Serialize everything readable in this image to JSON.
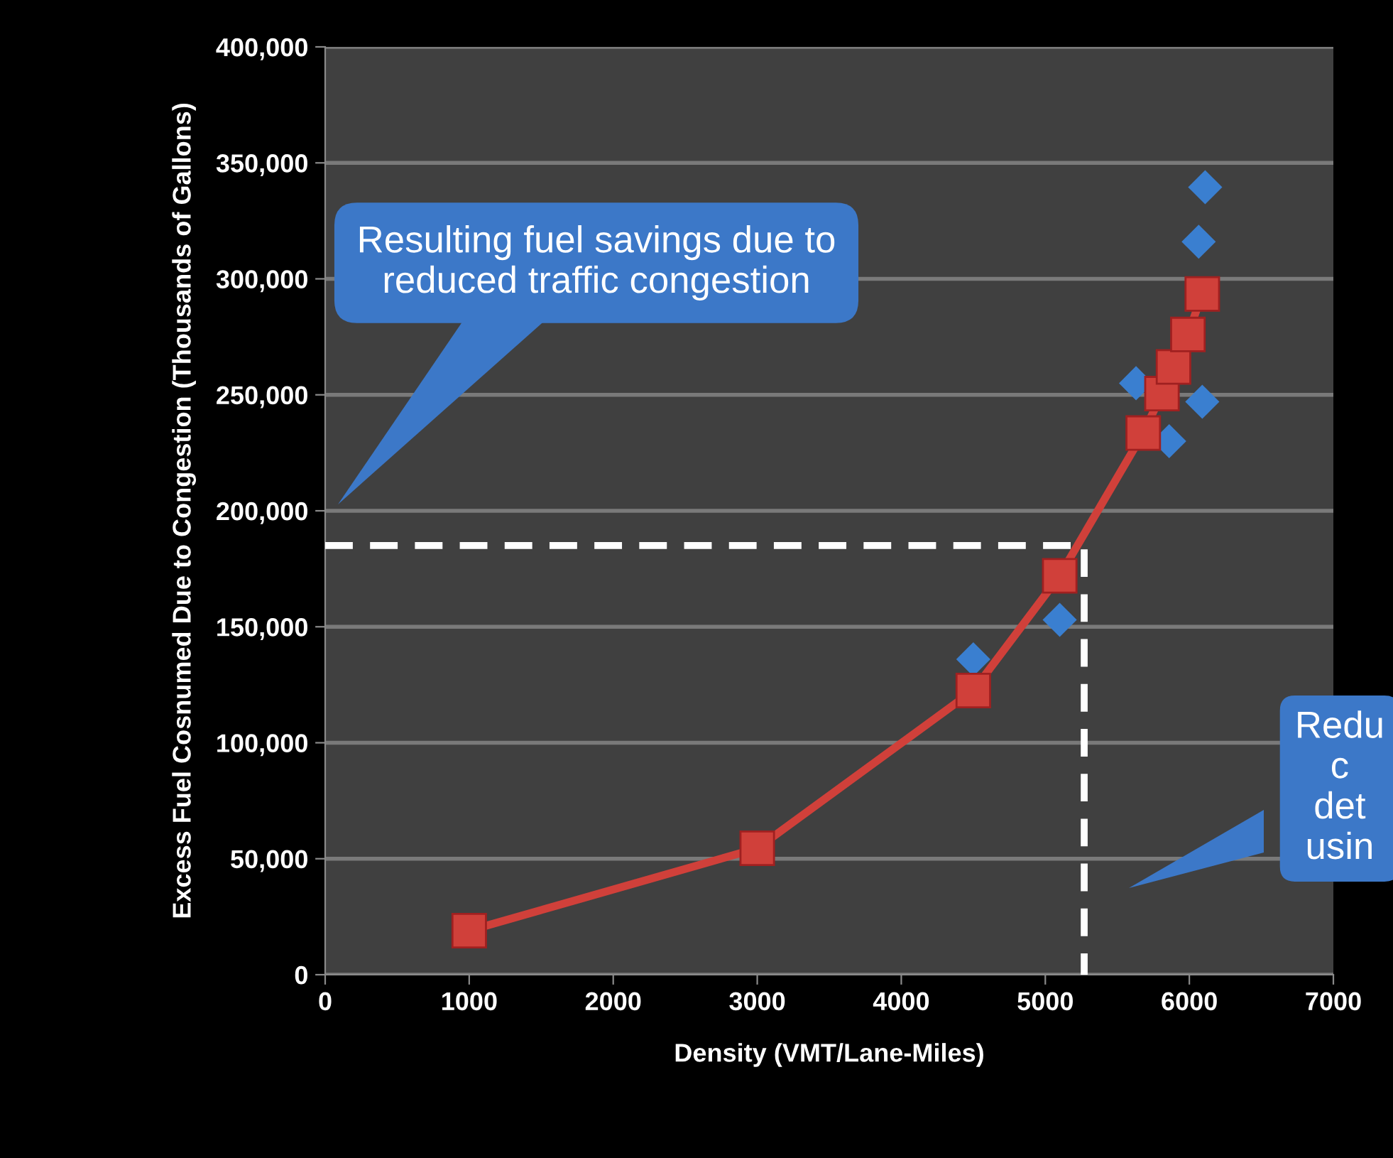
{
  "chart_data": {
    "type": "scatter",
    "xlabel": "Density (VMT/Lane-Miles)",
    "ylabel": "Excess Fuel Cosnumed Due to Congestion (Thousands of Gallons)",
    "xlim": [
      0,
      7000
    ],
    "xticks": [
      0,
      1000,
      2000,
      3000,
      4000,
      5000,
      6000,
      7000
    ],
    "ylim": [
      0,
      400000
    ],
    "yticks": [
      {
        "value": 0,
        "label": "0"
      },
      {
        "value": 50000,
        "label": "50,000"
      },
      {
        "value": 100000,
        "label": "100,000"
      },
      {
        "value": 150000,
        "label": "150,000"
      },
      {
        "value": 200000,
        "label": "200,000"
      },
      {
        "value": 250000,
        "label": "250,000"
      },
      {
        "value": 300000,
        "label": "300,000"
      },
      {
        "value": 350000,
        "label": "350,000"
      },
      {
        "value": 400000,
        "label": "400,000"
      }
    ],
    "grid": "y",
    "series": [
      {
        "marker": "diamond",
        "color": "#3a7fd0",
        "x": [
          4500,
          5100,
          5630,
          5860,
          6090,
          6065,
          6110
        ],
        "values": [
          136000,
          153000,
          255000,
          230000,
          247000,
          316000,
          339500
        ]
      },
      {
        "type": "line",
        "marker": "square",
        "color": "#d0403a",
        "x": [
          1000,
          3000,
          4500,
          5100,
          5680,
          5810,
          5890,
          5990,
          6090
        ],
        "values": [
          19000,
          54500,
          122500,
          172000,
          233500,
          250500,
          262000,
          276000,
          293500
        ]
      },
      {
        "type": "line",
        "marker": "none",
        "line_style": "dashed",
        "color": "#ffffff",
        "x": [
          0,
          5270,
          5270
        ],
        "values": [
          185000,
          185000,
          0
        ]
      }
    ],
    "annotations": [
      "Resulting fuel savings due to reduced traffic congestion",
      "Redu\nc\ndet\nusin"
    ]
  }
}
